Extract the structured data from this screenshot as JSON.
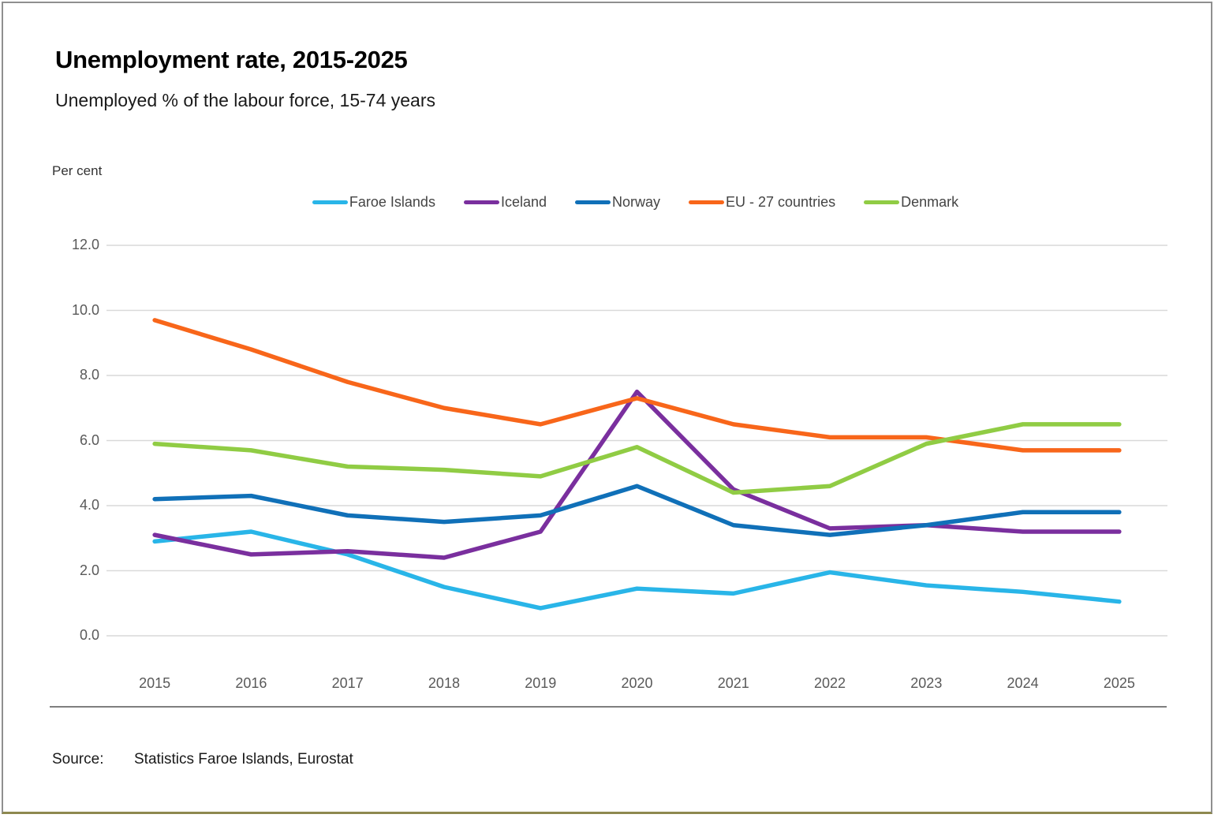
{
  "header": {
    "title": "Unemployment rate, 2015-2025",
    "subtitle": "Unemployed % of the labour force, 15-74 years"
  },
  "axis_unit_label": "Per cent",
  "source": {
    "label": "Source:",
    "text": "Statistics Faroe Islands, Eurostat"
  },
  "frame_colors": {
    "border_gray": "#8f8f8f",
    "bottom_rule_olive": "#8e894f",
    "divider_gray": "#7f7f7f",
    "gridline": "#d9d9d9",
    "tick_text": "#595959"
  },
  "chart_data": {
    "type": "line",
    "title": "Unemployment rate, 2015-2025",
    "xlabel": "",
    "ylabel": "Per cent",
    "x": [
      "2015",
      "2016",
      "2017",
      "2018",
      "2019",
      "2020",
      "2021",
      "2022",
      "2023",
      "2024",
      "2025"
    ],
    "series": [
      {
        "name": "Faroe Islands",
        "color": "#29b5e8",
        "values": [
          2.9,
          3.2,
          2.5,
          1.5,
          0.85,
          1.45,
          1.3,
          1.95,
          1.55,
          1.35,
          1.05
        ]
      },
      {
        "name": "Iceland",
        "color": "#7a2f9e",
        "values": [
          3.1,
          2.5,
          2.6,
          2.4,
          3.2,
          7.5,
          4.5,
          3.3,
          3.4,
          3.2,
          3.2
        ]
      },
      {
        "name": "Norway",
        "color": "#1070b8",
        "values": [
          4.2,
          4.3,
          3.7,
          3.5,
          3.7,
          4.6,
          3.4,
          3.1,
          3.4,
          3.8,
          3.8
        ]
      },
      {
        "name": "EU - 27 countries",
        "color": "#f8661a",
        "values": [
          9.7,
          8.8,
          7.8,
          7.0,
          6.5,
          7.3,
          6.5,
          6.1,
          6.1,
          5.7,
          5.7
        ]
      },
      {
        "name": "Denmark",
        "color": "#90cc44",
        "values": [
          5.9,
          5.7,
          5.2,
          5.1,
          4.9,
          5.8,
          4.4,
          4.6,
          5.9,
          6.5,
          6.5
        ]
      }
    ],
    "ylim": [
      0,
      12
    ],
    "yticks": [
      0,
      2,
      4,
      6,
      8,
      10,
      12
    ],
    "ytick_labels": [
      "0.0",
      "2.0",
      "4.0",
      "6.0",
      "8.0",
      "10.0",
      "12.0"
    ],
    "grid": true,
    "legend_position": "top-center"
  }
}
